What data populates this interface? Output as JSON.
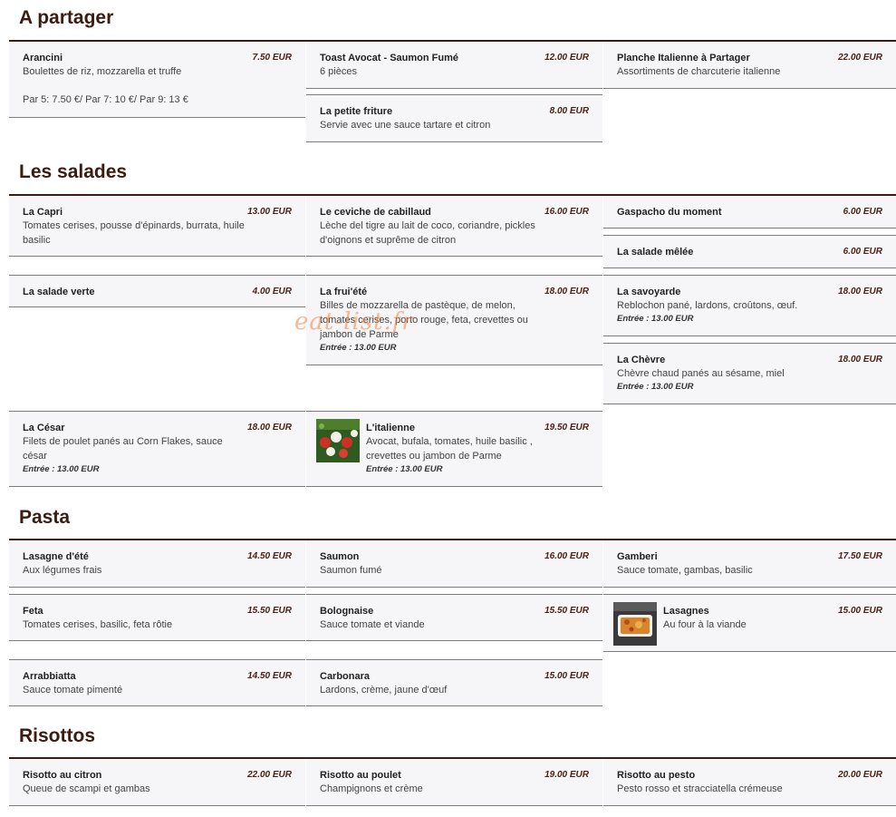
{
  "sections": {
    "partager": "A partager",
    "salades": "Les salades",
    "pasta": "Pasta",
    "risottos": "Risottos"
  },
  "items": {
    "arancini": {
      "name": "Arancini",
      "price": "7.50 EUR",
      "desc": "Boulettes de riz, mozzarella et truffe",
      "extra": "Par 5: 7.50 €/ Par 7: 10 €/ Par 9: 13 €"
    },
    "toast": {
      "name": "Toast Avocat - Saumon Fumé",
      "price": "12.00 EUR",
      "desc": "6 pièces"
    },
    "planche": {
      "name": "Planche Italienne à Partager",
      "price": "22.00 EUR",
      "desc": "Assortiments de charcuterie italienne"
    },
    "friture": {
      "name": "La petite friture",
      "price": "8.00 EUR",
      "desc": "Servie avec une sauce tartare et citron"
    },
    "capri": {
      "name": "La Capri",
      "price": "13.00 EUR",
      "desc1": "Tomates cerises, pousse d'épinards, burrata, huile",
      "desc2": "basilic"
    },
    "ceviche": {
      "name": "Le ceviche de cabillaud",
      "price": "16.00 EUR",
      "desc1": "Lèche del tigre au lait de coco, coriandre, pickles",
      "desc2": "d'oignons et suprême de citron"
    },
    "gaspacho": {
      "name": "Gaspacho du moment",
      "price": "6.00 EUR"
    },
    "melee": {
      "name": "La salade mêlée",
      "price": "6.00 EUR"
    },
    "verte": {
      "name": "La salade verte",
      "price": "4.00 EUR"
    },
    "fruiete": {
      "name": "La frui'été",
      "price": "18.00 EUR",
      "desc1": "Billes de mozzarella de pastèque, de melon,",
      "desc2": "tomates cerises, porto rouge, feta, crevettes ou",
      "desc3": "jambon de Parme",
      "entree": "Entrée : 13.00 EUR"
    },
    "savoyarde": {
      "name": "La savoyarde",
      "price": "18.00 EUR",
      "desc": "Reblochon pané, lardons, croûtons, œuf.",
      "entree": "Entrée : 13.00 EUR"
    },
    "chevre": {
      "name": "La Chèvre",
      "price": "18.00 EUR",
      "desc": "Chèvre chaud panés au sésame, miel",
      "entree": "Entrée : 13.00 EUR"
    },
    "cesar": {
      "name": "La César",
      "price": "18.00 EUR",
      "desc1": "Filets de poulet panés au Corn Flakes, sauce",
      "desc2": "césar",
      "entree": "Entrée : 13.00 EUR"
    },
    "italienne": {
      "name": "L'italienne",
      "price": "19.50 EUR",
      "desc1": "Avocat, bufala, tomates, huile basilic ,",
      "desc2": "crevettes ou jambon de Parme",
      "entree": "Entrée : 13.00 EUR"
    },
    "lasagne_ete": {
      "name": "Lasagne d'été",
      "price": "14.50 EUR",
      "desc": "Aux légumes frais"
    },
    "saumon": {
      "name": "Saumon",
      "price": "16.00 EUR",
      "desc": "Saumon fumé"
    },
    "gamberi": {
      "name": "Gamberi",
      "price": "17.50 EUR",
      "desc": "Sauce tomate, gambas, basilic"
    },
    "feta": {
      "name": "Feta",
      "price": "15.50 EUR",
      "desc": "Tomates cerises, basilic, feta rôtie"
    },
    "bolognaise": {
      "name": "Bolognaise",
      "price": "15.50 EUR",
      "desc": "Sauce tomate et viande"
    },
    "lasagnes": {
      "name": "Lasagnes",
      "price": "15.00 EUR",
      "desc": "Au four à la viande"
    },
    "arrabbiatta": {
      "name": "Arrabbiatta",
      "price": "14.50 EUR",
      "desc": "Sauce tomate pimenté"
    },
    "carbonara": {
      "name": "Carbonara",
      "price": "15.00 EUR",
      "desc": "Lardons, crème, jaune d'œuf"
    },
    "citron": {
      "name": "Risotto au citron",
      "price": "22.00 EUR",
      "desc": "Queue de scampi et gambas"
    },
    "poulet": {
      "name": "Risotto au poulet",
      "price": "19.00 EUR",
      "desc": "Champignons et crème"
    },
    "pesto": {
      "name": "Risotto au pesto",
      "price": "20.00 EUR",
      "desc": "Pesto rosso et stracciatella crémeuse"
    }
  },
  "watermark": "eat-list.fr",
  "colors": {
    "heading": "#3b1c10",
    "card_bg": "#f6f5f7",
    "price": "#4a2316"
  }
}
